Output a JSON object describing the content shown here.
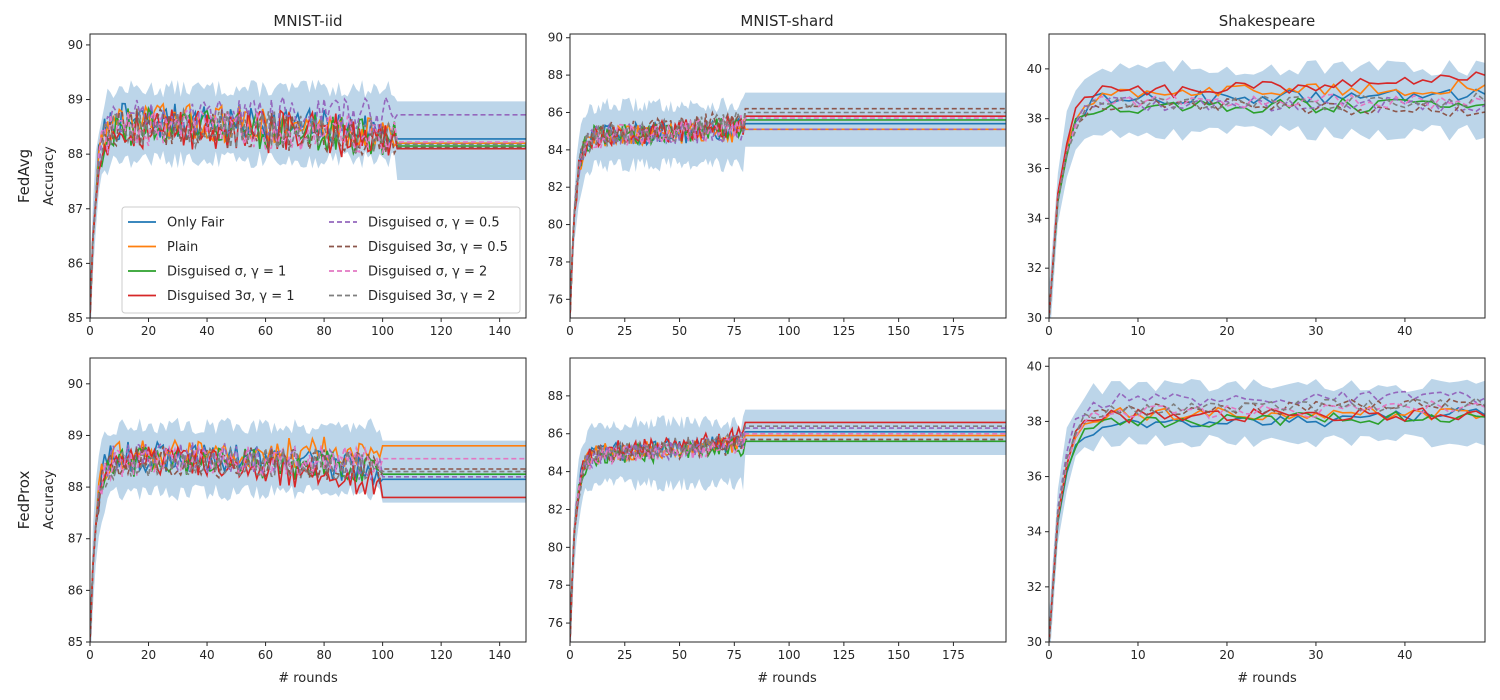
{
  "figure": {
    "column_titles": [
      "MNIST-iid",
      "MNIST-shard",
      "Shakespeare"
    ],
    "row_labels": [
      "FedAvg",
      "FedProx"
    ],
    "ylabel": "Accuracy",
    "xlabel": "# rounds"
  },
  "legend": {
    "entries": [
      {
        "label": "Only Fair",
        "color": "#1f77b4",
        "dash": false
      },
      {
        "label": "Plain",
        "color": "#ff7f0e",
        "dash": false
      },
      {
        "label": "Disguised σ, γ = 1",
        "color": "#2ca02c",
        "dash": false
      },
      {
        "label": "Disguised 3σ, γ = 1",
        "color": "#d62728",
        "dash": false
      },
      {
        "label": "Disguised σ, γ = 0.5",
        "color": "#9467bd",
        "dash": true
      },
      {
        "label": "Disguised 3σ, γ = 0.5",
        "color": "#8c564b",
        "dash": true
      },
      {
        "label": "Disguised σ, γ = 2",
        "color": "#e377c2",
        "dash": true
      },
      {
        "label": "Disguised 3σ, γ = 2",
        "color": "#7f7f7f",
        "dash": true
      }
    ]
  },
  "colors": {
    "band": "#b8d3e8",
    "axes": "#262626"
  },
  "chart_data": [
    {
      "type": "line",
      "row": "FedAvg",
      "column": "MNIST-iid",
      "xlim": [
        0,
        149
      ],
      "ylim": [
        85,
        90.2
      ],
      "xticks": [
        0,
        20,
        40,
        60,
        80,
        100,
        120,
        140
      ],
      "yticks": [
        85,
        86,
        87,
        88,
        89,
        90
      ],
      "rounds": 150,
      "final_round": 105,
      "series": [
        {
          "name": "Only Fair",
          "start": 85.0,
          "mean": 88.6,
          "final": 88.28,
          "noise": 0.35
        },
        {
          "name": "Plain",
          "start": 85.0,
          "mean": 88.6,
          "final": 88.2,
          "noise": 0.35
        },
        {
          "name": "Disguised σ, γ = 1",
          "start": 85.0,
          "mean": 88.5,
          "final": 88.15,
          "noise": 0.35
        },
        {
          "name": "Disguised 3σ, γ = 1",
          "start": 85.0,
          "mean": 88.5,
          "final": 88.1,
          "noise": 0.4
        },
        {
          "name": "Disguised σ, γ = 0.5",
          "start": 85.0,
          "mean": 88.7,
          "final": 88.72,
          "noise": 0.35
        },
        {
          "name": "Disguised 3σ, γ = 0.5",
          "start": 85.0,
          "mean": 88.5,
          "final": 88.12,
          "noise": 0.35
        },
        {
          "name": "Disguised σ, γ = 2",
          "start": 85.0,
          "mean": 88.5,
          "final": 88.22,
          "noise": 0.35
        },
        {
          "name": "Disguised 3σ, γ = 2",
          "start": 85.0,
          "mean": 88.5,
          "final": 88.18,
          "noise": 0.35
        }
      ],
      "band": {
        "half_width_early": 0.65,
        "half_width_late": 0.72
      }
    },
    {
      "type": "line",
      "row": "FedAvg",
      "column": "MNIST-shard",
      "xlim": [
        0,
        199
      ],
      "ylim": [
        75,
        90.2
      ],
      "xticks": [
        0,
        25,
        50,
        75,
        100,
        125,
        150,
        175
      ],
      "yticks": [
        76,
        78,
        80,
        82,
        84,
        86,
        88,
        90
      ],
      "rounds": 200,
      "final_round": 80,
      "series": [
        {
          "name": "Only Fair",
          "start": 75.0,
          "mean": 84.8,
          "final": 85.4,
          "noise": 0.6
        },
        {
          "name": "Plain",
          "start": 75.0,
          "mean": 84.8,
          "final": 85.1,
          "noise": 0.6
        },
        {
          "name": "Disguised σ, γ = 1",
          "start": 75.0,
          "mean": 84.8,
          "final": 85.6,
          "noise": 0.6
        },
        {
          "name": "Disguised 3σ, γ = 1",
          "start": 75.0,
          "mean": 84.8,
          "final": 85.8,
          "noise": 0.6
        },
        {
          "name": "Disguised σ, γ = 0.5",
          "start": 75.0,
          "mean": 84.8,
          "final": 85.1,
          "noise": 0.6
        },
        {
          "name": "Disguised 3σ, γ = 0.5",
          "start": 75.0,
          "mean": 84.9,
          "final": 86.2,
          "noise": 0.6
        },
        {
          "name": "Disguised σ, γ = 2",
          "start": 75.0,
          "mean": 84.7,
          "final": 85.7,
          "noise": 0.6
        },
        {
          "name": "Disguised 3σ, γ = 2",
          "start": 75.0,
          "mean": 84.8,
          "final": 86.0,
          "noise": 0.6
        }
      ],
      "band": {
        "half_width_early": 1.6,
        "half_width_late": 1.45
      }
    },
    {
      "type": "line",
      "row": "FedAvg",
      "column": "Shakespeare",
      "xlim": [
        0,
        49
      ],
      "ylim": [
        30,
        41.4
      ],
      "xticks": [
        0,
        10,
        20,
        30,
        40
      ],
      "yticks": [
        30,
        32,
        34,
        36,
        38,
        40
      ],
      "rounds": 50,
      "final_round": 50,
      "series": [
        {
          "name": "Only Fair",
          "start": 30.0,
          "mean": 38.8,
          "final": 39.1,
          "noise": 0.3
        },
        {
          "name": "Plain",
          "start": 30.0,
          "mean": 39.0,
          "final": 39.6,
          "noise": 0.3
        },
        {
          "name": "Disguised σ, γ = 1",
          "start": 30.0,
          "mean": 38.5,
          "final": 38.6,
          "noise": 0.3
        },
        {
          "name": "Disguised 3σ, γ = 1",
          "start": 30.0,
          "mean": 39.1,
          "final": 40.2,
          "noise": 0.3
        },
        {
          "name": "Disguised σ, γ = 0.5",
          "start": 30.0,
          "mean": 38.6,
          "final": 38.5,
          "noise": 0.3
        },
        {
          "name": "Disguised 3σ, γ = 0.5",
          "start": 30.0,
          "mean": 38.6,
          "final": 38.0,
          "noise": 0.3
        },
        {
          "name": "Disguised σ, γ = 2",
          "start": 30.0,
          "mean": 38.7,
          "final": 38.7,
          "noise": 0.3
        },
        {
          "name": "Disguised 3σ, γ = 2",
          "start": 30.0,
          "mean": 38.6,
          "final": 38.8,
          "noise": 0.3
        }
      ],
      "band": {
        "half_width_early": 1.3,
        "half_width_late": 1.1
      }
    },
    {
      "type": "line",
      "row": "FedProx",
      "column": "MNIST-iid",
      "xlim": [
        0,
        149
      ],
      "ylim": [
        85,
        90.5
      ],
      "xticks": [
        0,
        20,
        40,
        60,
        80,
        100,
        120,
        140
      ],
      "yticks": [
        85,
        86,
        87,
        88,
        89,
        90
      ],
      "rounds": 150,
      "final_round": 100,
      "series": [
        {
          "name": "Only Fair",
          "start": 85.0,
          "mean": 88.6,
          "final": 88.15,
          "noise": 0.3
        },
        {
          "name": "Plain",
          "start": 85.0,
          "mean": 88.6,
          "final": 88.8,
          "noise": 0.3
        },
        {
          "name": "Disguised σ, γ = 1",
          "start": 85.0,
          "mean": 88.5,
          "final": 88.25,
          "noise": 0.3
        },
        {
          "name": "Disguised 3σ, γ = 1",
          "start": 85.0,
          "mean": 88.5,
          "final": 87.8,
          "noise": 0.3
        },
        {
          "name": "Disguised σ, γ = 0.5",
          "start": 85.0,
          "mean": 88.6,
          "final": 88.2,
          "noise": 0.3
        },
        {
          "name": "Disguised 3σ, γ = 0.5",
          "start": 85.0,
          "mean": 88.5,
          "final": 88.35,
          "noise": 0.3
        },
        {
          "name": "Disguised σ, γ = 2",
          "start": 85.0,
          "mean": 88.5,
          "final": 88.55,
          "noise": 0.3
        },
        {
          "name": "Disguised 3σ, γ = 2",
          "start": 85.0,
          "mean": 88.5,
          "final": 88.3,
          "noise": 0.3
        }
      ],
      "band": {
        "half_width_early": 0.65,
        "half_width_late": 0.6
      }
    },
    {
      "type": "line",
      "row": "FedProx",
      "column": "MNIST-shard",
      "xlim": [
        0,
        199
      ],
      "ylim": [
        75,
        90
      ],
      "xticks": [
        0,
        25,
        50,
        75,
        100,
        125,
        150,
        175
      ],
      "yticks": [
        76,
        78,
        80,
        82,
        84,
        86,
        88
      ],
      "rounds": 200,
      "final_round": 80,
      "series": [
        {
          "name": "Only Fair",
          "start": 75.0,
          "mean": 85.0,
          "final": 86.1,
          "noise": 0.5
        },
        {
          "name": "Plain",
          "start": 75.0,
          "mean": 85.0,
          "final": 85.9,
          "noise": 0.5
        },
        {
          "name": "Disguised σ, γ = 1",
          "start": 75.0,
          "mean": 84.9,
          "final": 85.6,
          "noise": 0.5
        },
        {
          "name": "Disguised 3σ, γ = 1",
          "start": 75.0,
          "mean": 85.1,
          "final": 86.6,
          "noise": 0.5
        },
        {
          "name": "Disguised σ, γ = 0.5",
          "start": 75.0,
          "mean": 84.9,
          "final": 86.3,
          "noise": 0.5
        },
        {
          "name": "Disguised 3σ, γ = 0.5",
          "start": 75.0,
          "mean": 85.0,
          "final": 85.7,
          "noise": 0.5
        },
        {
          "name": "Disguised σ, γ = 2",
          "start": 75.0,
          "mean": 84.8,
          "final": 86.0,
          "noise": 0.5
        },
        {
          "name": "Disguised 3σ, γ = 2",
          "start": 75.0,
          "mean": 85.0,
          "final": 86.4,
          "noise": 0.5
        }
      ],
      "band": {
        "half_width_early": 1.6,
        "half_width_late": 1.2
      }
    },
    {
      "type": "line",
      "row": "FedProx",
      "column": "Shakespeare",
      "xlim": [
        0,
        49
      ],
      "ylim": [
        30,
        40.3
      ],
      "xticks": [
        0,
        10,
        20,
        30,
        40
      ],
      "yticks": [
        30,
        32,
        34,
        36,
        38,
        40
      ],
      "rounds": 50,
      "final_round": 50,
      "series": [
        {
          "name": "Only Fair",
          "start": 30.0,
          "mean": 37.9,
          "final": 38.6,
          "noise": 0.25
        },
        {
          "name": "Plain",
          "start": 30.0,
          "mean": 38.3,
          "final": 38.3,
          "noise": 0.25
        },
        {
          "name": "Disguised σ, γ = 1",
          "start": 30.0,
          "mean": 38.0,
          "final": 38.4,
          "noise": 0.25
        },
        {
          "name": "Disguised 3σ, γ = 1",
          "start": 30.0,
          "mean": 38.2,
          "final": 38.3,
          "noise": 0.25
        },
        {
          "name": "Disguised σ, γ = 0.5",
          "start": 30.0,
          "mean": 38.8,
          "final": 39.0,
          "noise": 0.25
        },
        {
          "name": "Disguised 3σ, γ = 0.5",
          "start": 30.0,
          "mean": 38.4,
          "final": 38.9,
          "noise": 0.25
        },
        {
          "name": "Disguised σ, γ = 2",
          "start": 30.0,
          "mean": 38.3,
          "final": 38.8,
          "noise": 0.25
        },
        {
          "name": "Disguised 3σ, γ = 2",
          "start": 30.0,
          "mean": 38.5,
          "final": 38.7,
          "noise": 0.25
        }
      ],
      "band": {
        "half_width_early": 1.0,
        "half_width_late": 0.9
      }
    }
  ]
}
